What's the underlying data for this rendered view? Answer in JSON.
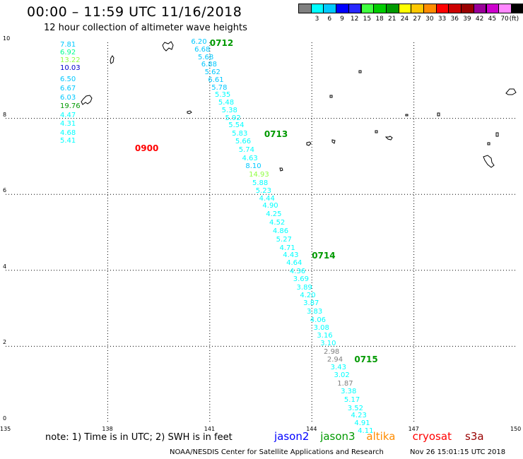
{
  "header": {
    "title": "00:00 – 11:59 UTC 11/16/2018",
    "subtitle": "12 hour collection of altimeter wave heights"
  },
  "colorbar": {
    "unit": "(ft)",
    "bins": [
      {
        "color": "#808080",
        "label": ""
      },
      {
        "color": "#00ffff",
        "label": "3"
      },
      {
        "color": "#00c8ff",
        "label": "6"
      },
      {
        "color": "#0000ff",
        "label": "9"
      },
      {
        "color": "#2828ff",
        "label": "12"
      },
      {
        "color": "#40ff40",
        "label": "15"
      },
      {
        "color": "#00cc00",
        "label": "18"
      },
      {
        "color": "#009900",
        "label": "21"
      },
      {
        "color": "#ffff00",
        "label": "24"
      },
      {
        "color": "#ffc800",
        "label": "27"
      },
      {
        "color": "#ff8c00",
        "label": "30"
      },
      {
        "color": "#ff0000",
        "label": "33"
      },
      {
        "color": "#cc0000",
        "label": "36"
      },
      {
        "color": "#990000",
        "label": "39"
      },
      {
        "color": "#990099",
        "label": "42"
      },
      {
        "color": "#cc00cc",
        "label": "45"
      },
      {
        "color": "#ff88ff",
        "label": "70"
      },
      {
        "color": "#000000",
        "label": ""
      }
    ]
  },
  "axes": {
    "x_ticks": [
      {
        "value": 135,
        "label": "135"
      },
      {
        "value": 138,
        "label": "138"
      },
      {
        "value": 141,
        "label": "141"
      },
      {
        "value": 144,
        "label": "144"
      },
      {
        "value": 147,
        "label": "147"
      },
      {
        "value": 150,
        "label": "150"
      }
    ],
    "y_ticks": [
      {
        "value": 0,
        "label": "0"
      },
      {
        "value": 2,
        "label": "2"
      },
      {
        "value": 4,
        "label": "4"
      },
      {
        "value": 6,
        "label": "6"
      },
      {
        "value": 8,
        "label": "8"
      },
      {
        "value": 10,
        "label": "10"
      }
    ]
  },
  "tracks": [
    {
      "id": "track-0900",
      "time_label": {
        "text": "0900",
        "color": "#ff0000",
        "lon": 138.8,
        "lat": 7.22
      },
      "obs": [
        {
          "lon": 136.6,
          "lat": 9.92,
          "swh": "7.81",
          "color": "#00c8ff"
        },
        {
          "lon": 136.6,
          "lat": 9.72,
          "swh": "6.92",
          "color": "#00ff90"
        },
        {
          "lon": 136.6,
          "lat": 9.52,
          "swh": "13.22",
          "color": "#90ff40"
        },
        {
          "lon": 136.6,
          "lat": 9.32,
          "swh": "10.03",
          "color": "#0000cc"
        },
        {
          "lon": 136.6,
          "lat": 9.01,
          "swh": "6.50",
          "color": "#00c8ff"
        },
        {
          "lon": 136.6,
          "lat": 8.77,
          "swh": "6.67",
          "color": "#00c8ff"
        },
        {
          "lon": 136.6,
          "lat": 8.53,
          "swh": "6.03",
          "color": "#00c8ff"
        },
        {
          "lon": 136.6,
          "lat": 8.3,
          "swh": "19.76",
          "color": "#009900"
        },
        {
          "lon": 136.6,
          "lat": 8.07,
          "swh": "4.47",
          "color": "#00ffff"
        },
        {
          "lon": 136.6,
          "lat": 7.84,
          "swh": "4.31",
          "color": "#00ffff"
        },
        {
          "lon": 136.6,
          "lat": 7.61,
          "swh": "4.68",
          "color": "#00ffff"
        },
        {
          "lon": 136.6,
          "lat": 7.4,
          "swh": "5.41",
          "color": "#00ffff"
        }
      ]
    },
    {
      "id": "track-0712",
      "time_label": {
        "text": "0712",
        "color": "#009900",
        "lon": 141.0,
        "lat": 9.98
      },
      "obs": [
        {
          "lon": 140.45,
          "lat": 10.0,
          "swh": "6.20",
          "color": "#00c8ff"
        },
        {
          "lon": 140.55,
          "lat": 9.8,
          "swh": "6.68",
          "color": "#00c8ff"
        },
        {
          "lon": 140.65,
          "lat": 9.6,
          "swh": "5.68",
          "color": "#00c8ff"
        },
        {
          "lon": 140.75,
          "lat": 9.4,
          "swh": "6.88",
          "color": "#00c8ff"
        },
        {
          "lon": 140.85,
          "lat": 9.2,
          "swh": "5.62",
          "color": "#00c8ff"
        },
        {
          "lon": 140.95,
          "lat": 9.0,
          "swh": "6.61",
          "color": "#00c8ff"
        },
        {
          "lon": 141.05,
          "lat": 8.8,
          "swh": "5.78",
          "color": "#00c8ff"
        },
        {
          "lon": 141.15,
          "lat": 8.6,
          "swh": "5.35",
          "color": "#00ffff"
        },
        {
          "lon": 141.25,
          "lat": 8.4,
          "swh": "5.48",
          "color": "#00ffff"
        },
        {
          "lon": 141.35,
          "lat": 8.2,
          "swh": "5.38",
          "color": "#00ffff"
        },
        {
          "lon": 141.45,
          "lat": 8.0,
          "swh": "5.92",
          "color": "#00ffff"
        },
        {
          "lon": 141.55,
          "lat": 7.8,
          "swh": "5.54",
          "color": "#00ffff"
        },
        {
          "lon": 141.65,
          "lat": 7.58,
          "swh": "5.83",
          "color": "#00ffff"
        }
      ]
    },
    {
      "id": "track-0713",
      "time_label": {
        "text": "0713",
        "color": "#009900",
        "lon": 142.6,
        "lat": 7.58
      },
      "obs": [
        {
          "lon": 141.75,
          "lat": 7.38,
          "swh": "5.66",
          "color": "#00ffff"
        },
        {
          "lon": 141.85,
          "lat": 7.16,
          "swh": "5.74",
          "color": "#00ffff"
        },
        {
          "lon": 141.95,
          "lat": 6.94,
          "swh": "4.63",
          "color": "#00ffff"
        },
        {
          "lon": 142.05,
          "lat": 6.72,
          "swh": "8.10",
          "color": "#00c8ff"
        },
        {
          "lon": 142.15,
          "lat": 6.5,
          "swh": "14.93",
          "color": "#90ff40"
        },
        {
          "lon": 142.25,
          "lat": 6.28,
          "swh": "5.88",
          "color": "#00ffff"
        },
        {
          "lon": 142.35,
          "lat": 6.08,
          "swh": "5.23",
          "color": "#00ffff"
        },
        {
          "lon": 142.45,
          "lat": 5.88,
          "swh": "4.44",
          "color": "#00ffff"
        },
        {
          "lon": 142.55,
          "lat": 5.68,
          "swh": "4.90",
          "color": "#00ffff"
        },
        {
          "lon": 142.65,
          "lat": 5.46,
          "swh": "4.25",
          "color": "#00ffff"
        },
        {
          "lon": 142.75,
          "lat": 5.24,
          "swh": "4.52",
          "color": "#00ffff"
        },
        {
          "lon": 142.85,
          "lat": 5.02,
          "swh": "4.86",
          "color": "#00ffff"
        },
        {
          "lon": 142.95,
          "lat": 4.8,
          "swh": "5.27",
          "color": "#00ffff"
        },
        {
          "lon": 143.05,
          "lat": 4.58,
          "swh": "4.71",
          "color": "#00ffff"
        },
        {
          "lon": 143.15,
          "lat": 4.38,
          "swh": "4.43",
          "color": "#00ffff"
        }
      ]
    },
    {
      "id": "track-0714",
      "time_label": {
        "text": "0714",
        "color": "#009900",
        "lon": 144.0,
        "lat": 4.38
      },
      "obs": [
        {
          "lon": 143.25,
          "lat": 4.18,
          "swh": "4.64",
          "color": "#00ffff"
        },
        {
          "lon": 143.35,
          "lat": 3.96,
          "swh": "4.36",
          "color": "#00ffff"
        },
        {
          "lon": 143.45,
          "lat": 3.76,
          "swh": "3.69",
          "color": "#00ffff"
        },
        {
          "lon": 143.55,
          "lat": 3.54,
          "swh": "3.89",
          "color": "#00ffff"
        },
        {
          "lon": 143.65,
          "lat": 3.32,
          "swh": "4.20",
          "color": "#00ffff"
        },
        {
          "lon": 143.75,
          "lat": 3.12,
          "swh": "3.87",
          "color": "#00ffff"
        },
        {
          "lon": 143.85,
          "lat": 2.9,
          "swh": "3.83",
          "color": "#00ffff"
        },
        {
          "lon": 143.95,
          "lat": 2.68,
          "swh": "4.06",
          "color": "#00ffff"
        },
        {
          "lon": 144.05,
          "lat": 2.48,
          "swh": "3.08",
          "color": "#00ffff"
        },
        {
          "lon": 144.15,
          "lat": 2.26,
          "swh": "3.16",
          "color": "#00ffff"
        },
        {
          "lon": 144.25,
          "lat": 2.06,
          "swh": "3.10",
          "color": "#00ffff"
        },
        {
          "lon": 144.35,
          "lat": 1.84,
          "swh": "2.98",
          "color": "#808080"
        },
        {
          "lon": 144.45,
          "lat": 1.64,
          "swh": "2.94",
          "color": "#808080"
        }
      ]
    },
    {
      "id": "track-0715",
      "time_label": {
        "text": "0715",
        "color": "#009900",
        "lon": 145.25,
        "lat": 1.66
      },
      "obs": [
        {
          "lon": 144.55,
          "lat": 1.44,
          "swh": "3.43",
          "color": "#00ffff"
        },
        {
          "lon": 144.65,
          "lat": 1.22,
          "swh": "3.02",
          "color": "#00ffff"
        },
        {
          "lon": 144.75,
          "lat": 1.0,
          "swh": "1.87",
          "color": "#808080"
        },
        {
          "lon": 144.85,
          "lat": 0.8,
          "swh": "3.38",
          "color": "#00ffff"
        },
        {
          "lon": 144.95,
          "lat": 0.58,
          "swh": "5.17",
          "color": "#00ffff"
        },
        {
          "lon": 145.05,
          "lat": 0.36,
          "swh": "3.52",
          "color": "#00ffff"
        },
        {
          "lon": 145.15,
          "lat": 0.16,
          "swh": "4.23",
          "color": "#00ffff"
        },
        {
          "lon": 145.25,
          "lat": -0.04,
          "swh": "4.91",
          "color": "#00ffff"
        },
        {
          "lon": 145.35,
          "lat": -0.24,
          "swh": "4.11",
          "color": "#00ffff"
        }
      ]
    }
  ],
  "note": "note: 1) Time is in UTC; 2) SWH is in feet",
  "satellites": [
    {
      "name": "jason2",
      "color": "#0000ff"
    },
    {
      "name": "jason3",
      "color": "#009900"
    },
    {
      "name": "altika",
      "color": "#ff8c00"
    },
    {
      "name": "cryosat",
      "color": "#ff0000"
    },
    {
      "name": "s3a",
      "color": "#990000"
    }
  ],
  "footer": {
    "credit": "NOAA/NESDIS Center for Satellite Applications and Research",
    "timestamp": "Nov 26 15:01:15 UTC 2018"
  }
}
